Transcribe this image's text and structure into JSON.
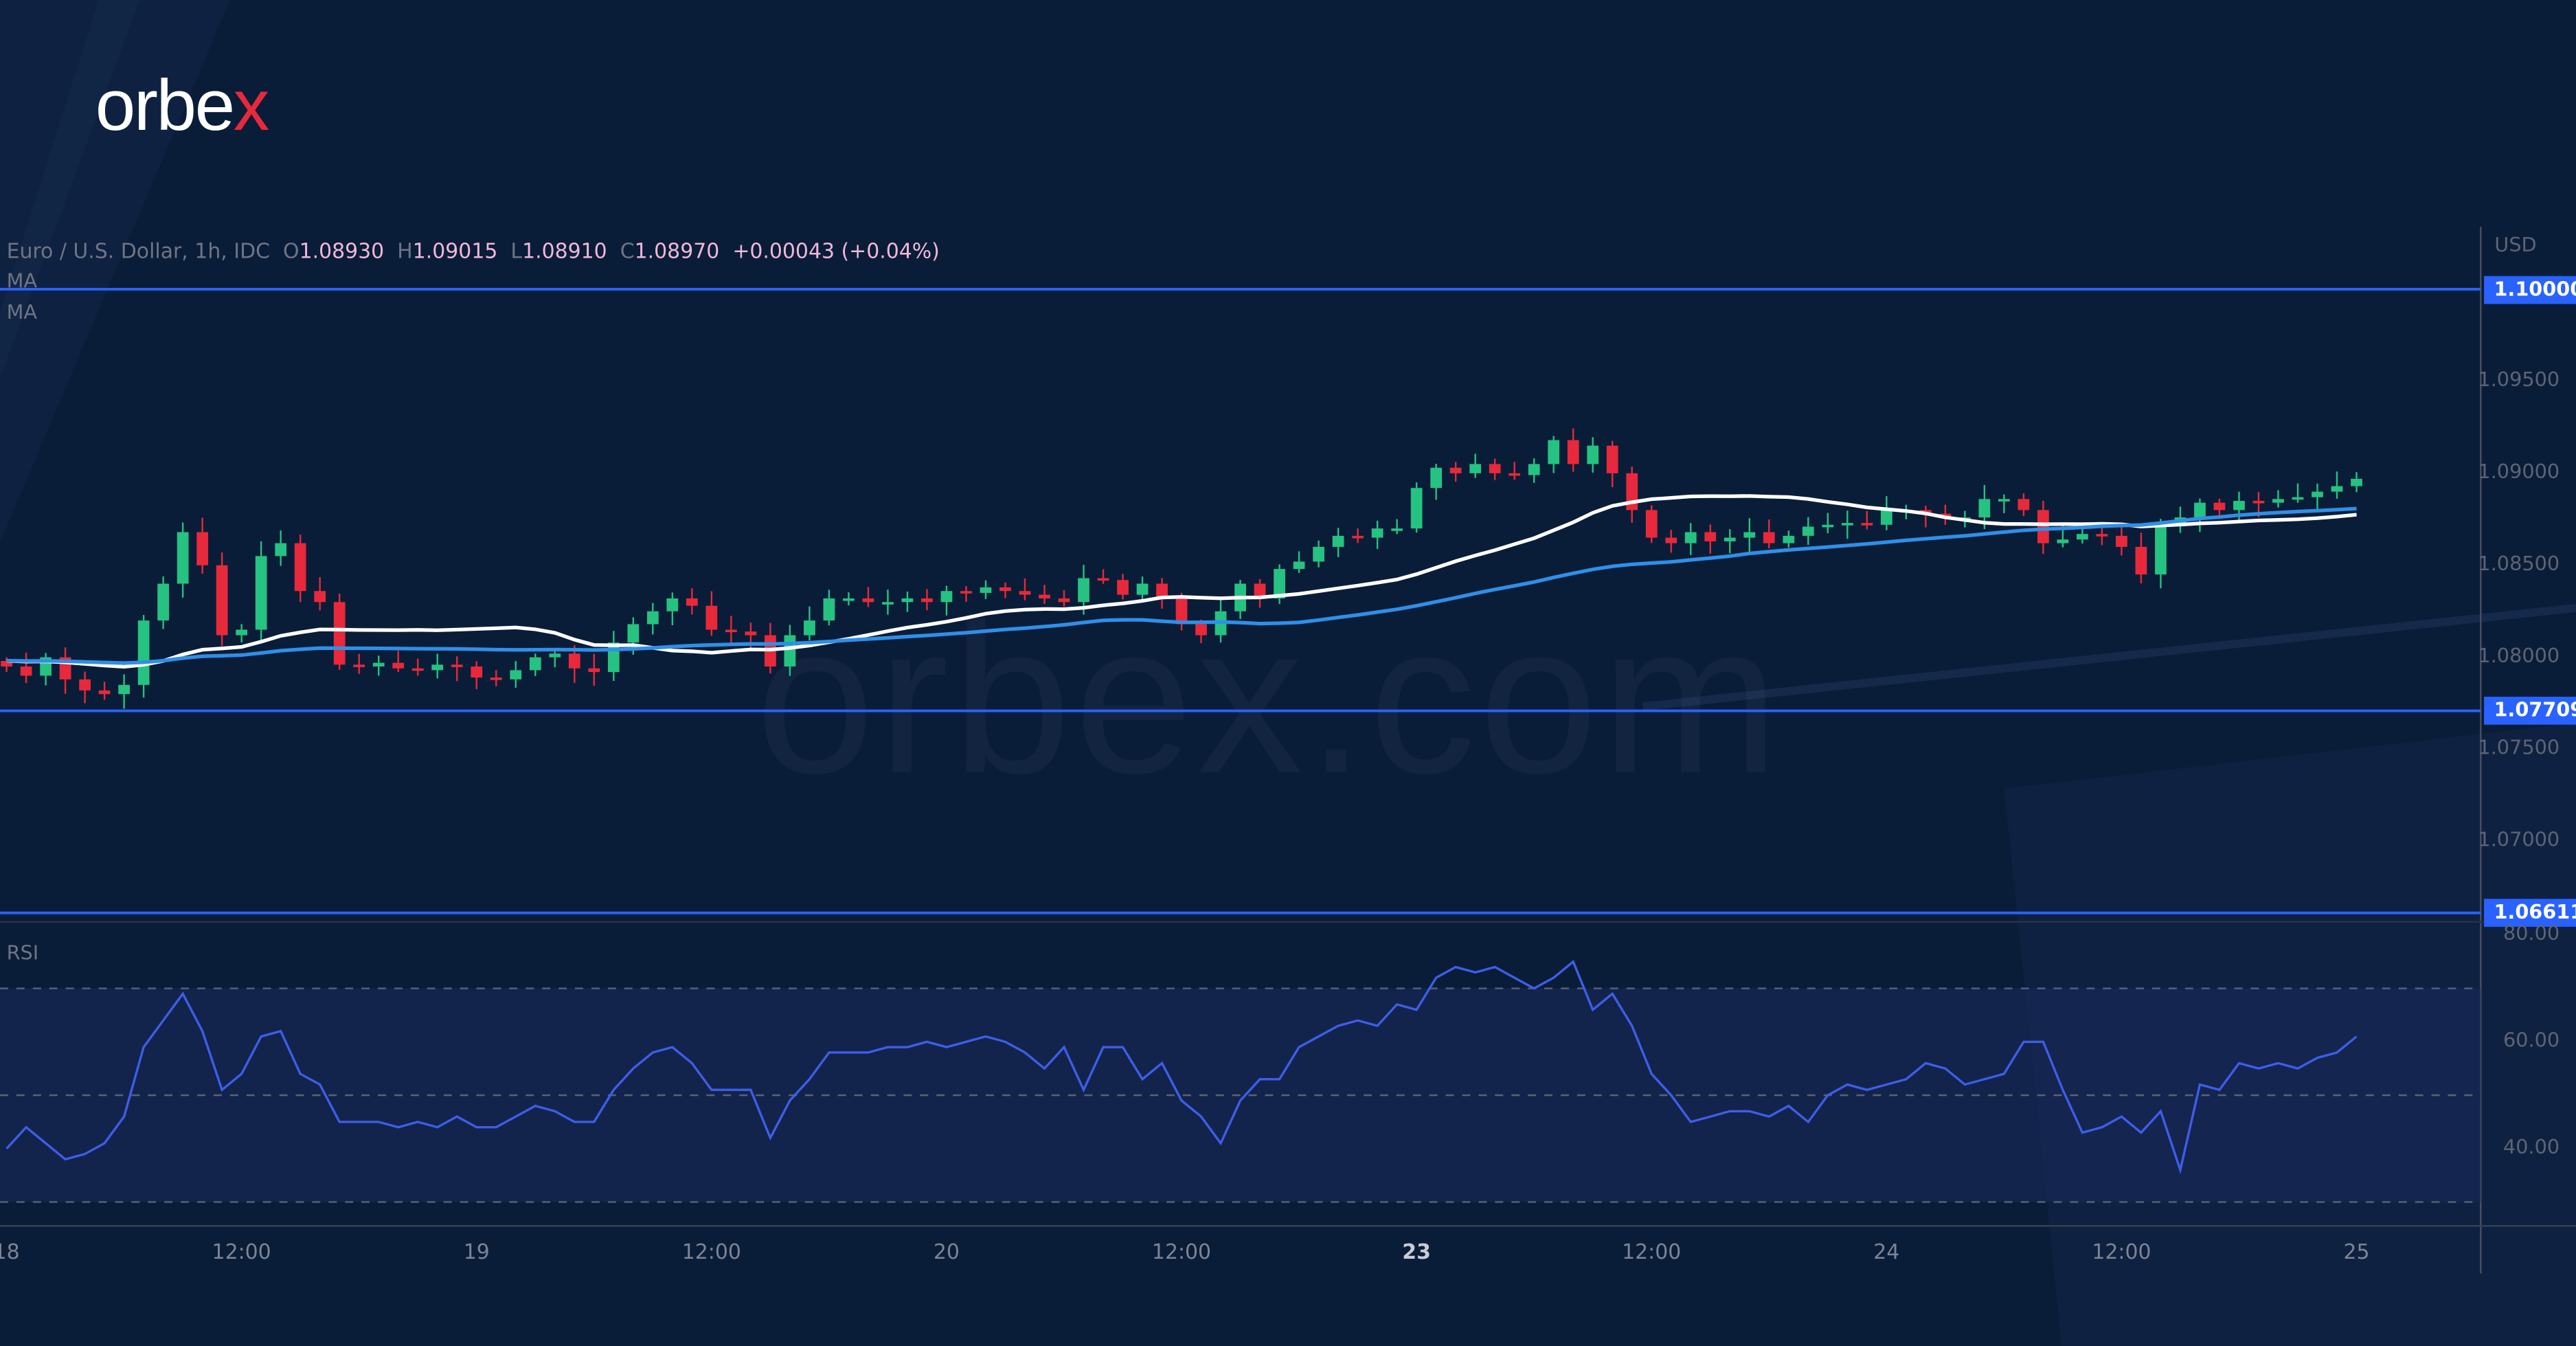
{
  "brand": {
    "logo_main": "orbe",
    "logo_x": "x",
    "watermark": "orbex.com"
  },
  "legend": {
    "symbol": "Euro / U.S. Dollar, 1h, IDC",
    "o_label": "O",
    "o": "1.08930",
    "h_label": "H",
    "h": "1.09015",
    "l_label": "L",
    "l": "1.08910",
    "c_label": "C",
    "c": "1.08970",
    "change": "+0.00043 (+0.04%)",
    "ma1": "MA",
    "ma2": "MA"
  },
  "colors": {
    "up": "#26c281",
    "down": "#e8293b",
    "level": "#2962ff",
    "ma_fast": "#ffffff",
    "ma_slow": "#2f8fe8",
    "rsi": "#3d5ee8"
  },
  "chart_data": {
    "type": "candlestick",
    "title": "Euro / U.S. Dollar, 1h, IDC",
    "currency_label": "USD",
    "ylim": [
      1.0625,
      1.1015
    ],
    "y_ticks": [
      "1.09500",
      "1.09000",
      "1.08500",
      "1.08000",
      "1.07500",
      "1.07000"
    ],
    "y_tick_values": [
      1.095,
      1.09,
      1.085,
      1.08,
      1.075,
      1.07
    ],
    "levels": [
      {
        "value": 1.1,
        "label": "1.10000"
      },
      {
        "value": 1.07709,
        "label": "1.07709"
      },
      {
        "value": 1.06611,
        "label": "1.06611"
      }
    ],
    "x_ticks": [
      {
        "label": "18",
        "index": 0
      },
      {
        "label": "12:00",
        "index": 12
      },
      {
        "label": "19",
        "index": 24
      },
      {
        "label": "12:00",
        "index": 36
      },
      {
        "label": "20",
        "index": 48
      },
      {
        "label": "12:00",
        "index": 60
      },
      {
        "label": "23",
        "index": 72,
        "bold": true
      },
      {
        "label": "12:00",
        "index": 84
      },
      {
        "label": "24",
        "index": 96
      },
      {
        "label": "12:00",
        "index": 108
      },
      {
        "label": "25",
        "index": 120
      }
    ],
    "closes": [
      1.0795,
      1.079,
      1.08,
      1.0788,
      1.0782,
      1.078,
      1.0785,
      1.082,
      1.084,
      1.0868,
      1.085,
      1.0812,
      1.0815,
      1.0855,
      1.0862,
      1.0836,
      1.083,
      1.0796,
      1.0795,
      1.0797,
      1.0794,
      1.0793,
      1.0796,
      1.0795,
      1.0789,
      1.0788,
      1.0793,
      1.08,
      1.0802,
      1.0794,
      1.0792,
      1.0808,
      1.0818,
      1.0825,
      1.0832,
      1.0828,
      1.0815,
      1.0814,
      1.0812,
      1.0795,
      1.0812,
      1.082,
      1.0832,
      1.0832,
      1.083,
      1.083,
      1.0832,
      1.083,
      1.0836,
      1.0835,
      1.0838,
      1.0836,
      1.0834,
      1.0832,
      1.083,
      1.0843,
      1.0842,
      1.0834,
      1.084,
      1.0832,
      1.0818,
      1.0812,
      1.0825,
      1.084,
      1.0832,
      1.0848,
      1.0852,
      1.086,
      1.0866,
      1.0865,
      1.087,
      1.087,
      1.0892,
      1.0903,
      1.09,
      1.0905,
      1.09,
      1.0899,
      1.0905,
      1.0918,
      1.0905,
      1.0915,
      1.09,
      1.088,
      1.0865,
      1.0862,
      1.0868,
      1.0863,
      1.0865,
      1.0868,
      1.0862,
      1.0866,
      1.0871,
      1.0872,
      1.0873,
      1.0872,
      1.088,
      1.088,
      1.0878,
      1.0876,
      1.0876,
      1.0886,
      1.0886,
      1.088,
      1.0862,
      1.0864,
      1.0867,
      1.0866,
      1.086,
      1.0845,
      1.0872,
      1.0876,
      1.0884,
      1.088,
      1.0885,
      1.0884,
      1.0886,
      1.0887,
      1.089,
      1.0893,
      1.0897
    ],
    "ma_periods": [
      20,
      50
    ],
    "rsi": {
      "label": "RSI",
      "ylim": [
        26,
        82
      ],
      "ticks": [
        "80.00",
        "60.00",
        "40.00"
      ],
      "tick_values": [
        80,
        60,
        40
      ],
      "bands": [
        70,
        50,
        30
      ],
      "values": [
        40,
        44,
        41,
        38,
        39,
        41,
        46,
        59,
        64,
        69,
        62,
        51,
        54,
        61,
        62,
        54,
        52,
        45,
        45,
        45,
        44,
        45,
        44,
        46,
        44,
        44,
        46,
        48,
        47,
        45,
        45,
        51,
        55,
        58,
        59,
        56,
        51,
        51,
        51,
        42,
        49,
        53,
        58,
        58,
        58,
        59,
        59,
        60,
        59,
        60,
        61,
        60,
        58,
        55,
        59,
        51,
        59,
        59,
        53,
        56,
        49,
        46,
        41,
        49,
        53,
        53,
        59,
        61,
        63,
        64,
        63,
        67,
        66,
        72,
        74,
        73,
        74,
        72,
        70,
        72,
        75,
        66,
        69,
        63,
        54,
        50,
        45,
        46,
        47,
        47,
        46,
        48,
        45,
        50,
        52,
        51,
        52,
        53,
        56,
        55,
        52,
        53,
        54,
        60,
        60,
        51,
        43,
        44,
        46,
        43,
        47,
        36,
        52,
        51,
        56,
        55,
        56,
        55,
        57,
        58,
        61
      ]
    }
  }
}
